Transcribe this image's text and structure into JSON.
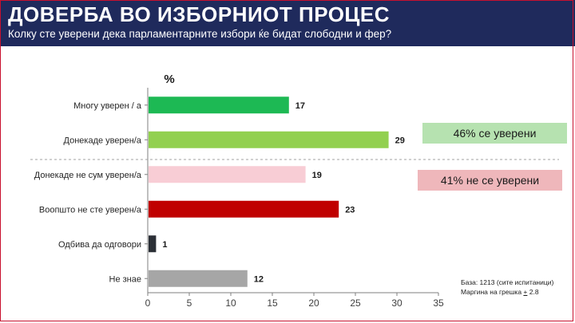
{
  "header": {
    "title": "ДОВЕРБА ВО ИЗБОРНИОТ ПРОЦЕС",
    "subtitle": "Колку сте уверени дека парламентарните избори  ќе бидат слободни и фер?"
  },
  "callouts": {
    "confident": "46% се уверени",
    "not_confident": "41% не се уверени"
  },
  "base_note": {
    "line1": "База: 1213 (сите испитаници)",
    "line2_prefix": "Маргина на грешка  ",
    "line2_pm": "+",
    "line2_value": " 2.8"
  },
  "colors": {
    "header_bg": "#1f2a5c",
    "callout_confident": "#b6e2b0",
    "callout_not_confident": "#efb7bb"
  },
  "chart_data": {
    "type": "bar",
    "orientation": "horizontal",
    "unit_label": "%",
    "categories": [
      "Многу уверен / а",
      "Донекаде уверен/а",
      "Донекаде не сум уверен/а",
      "Воопшто не сте уверен/а",
      "Одбива да одговори",
      "Не знае"
    ],
    "values": [
      17,
      29,
      19,
      23,
      1,
      12
    ],
    "bar_colors": [
      "#1db954",
      "#92d050",
      "#f8cdd5",
      "#c00000",
      "#2b2f36",
      "#a6a6a6"
    ],
    "xlim": [
      0,
      35
    ],
    "xticks": [
      0,
      5,
      10,
      15,
      20,
      25,
      30,
      35
    ],
    "grid": false,
    "separator_after_index": 1
  }
}
